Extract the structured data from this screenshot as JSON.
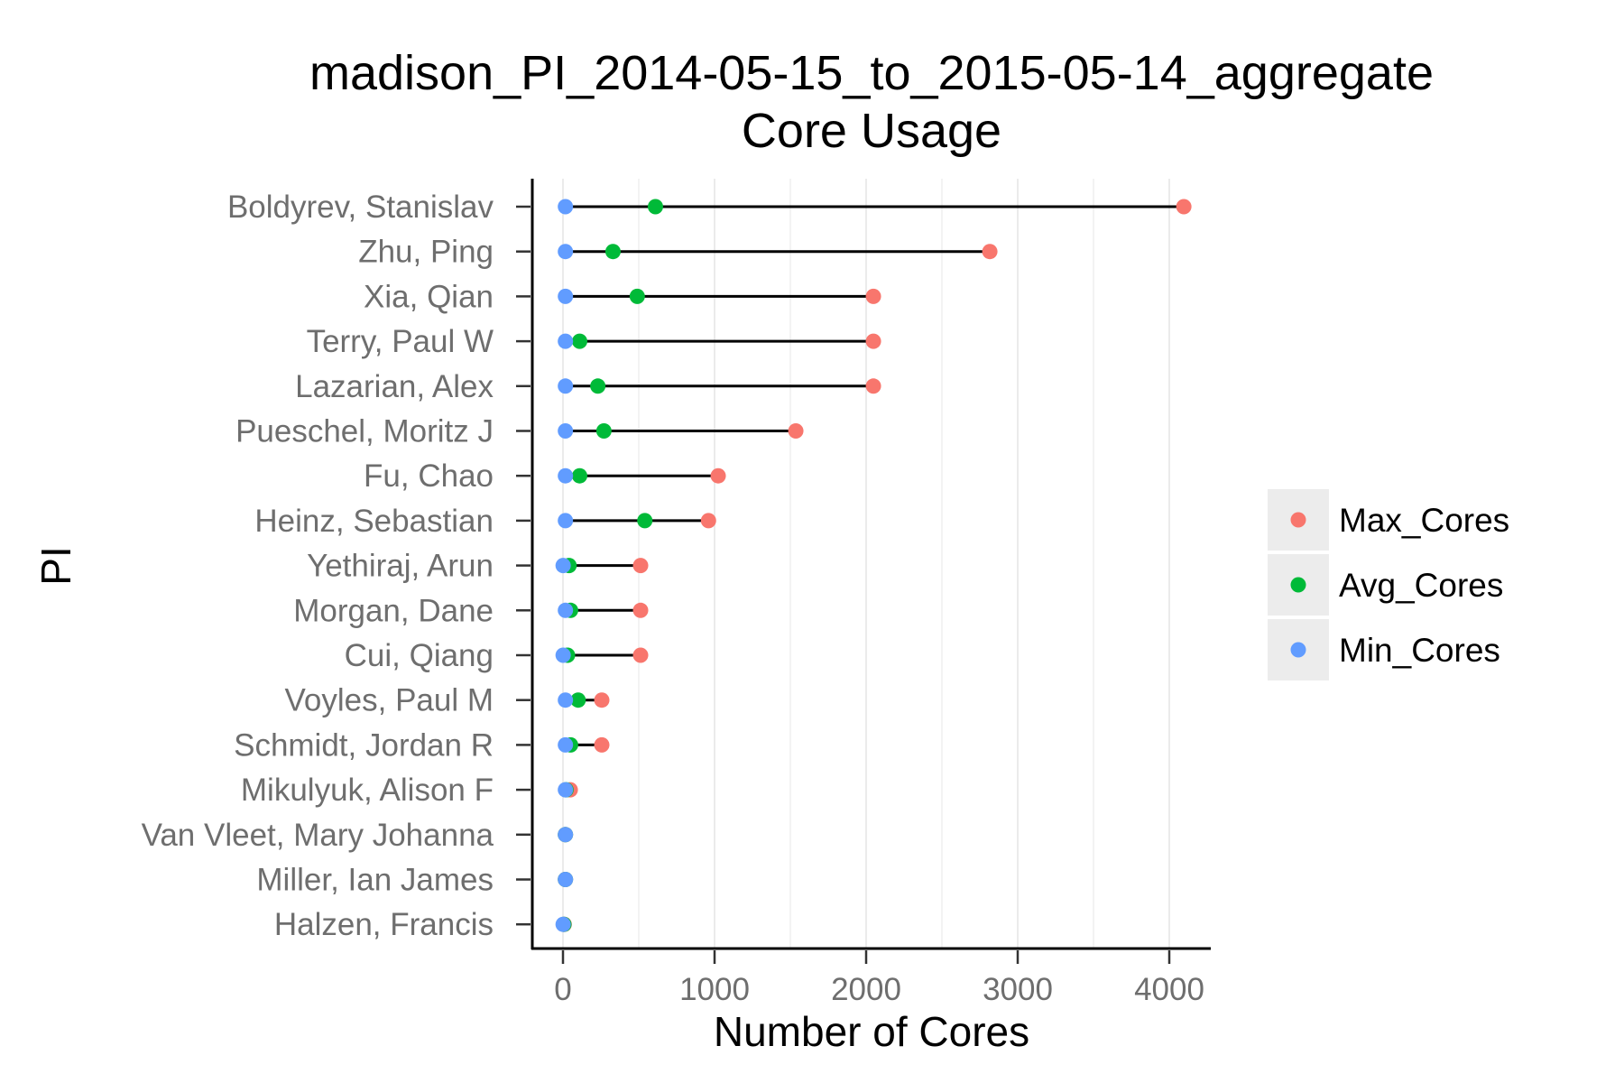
{
  "chart_data": {
    "type": "scatter",
    "title": "madison_PI_2014-05-15_to_2015-05-14_aggregate",
    "subtitle": "Core Usage",
    "xlabel": "Number of Cores",
    "ylabel": "PI",
    "xlim": [
      -200,
      4300
    ],
    "xticks": [
      0,
      1000,
      2000,
      3000,
      4000
    ],
    "grid": true,
    "legend_position": "right",
    "categories": [
      "Boldyrev, Stanislav",
      "Zhu, Ping",
      "Xia, Qian",
      "Terry, Paul W",
      "Lazarian, Alex",
      "Pueschel, Moritz J",
      "Fu, Chao",
      "Heinz, Sebastian",
      "Yethiraj, Arun",
      "Morgan, Dane",
      "Cui, Qiang",
      "Voyles, Paul M",
      "Schmidt, Jordan R",
      "Mikulyuk, Alison F",
      "Van Vleet, Mary Johanna",
      "Miller, Ian James",
      "Halzen, Francis"
    ],
    "series": [
      {
        "name": "Max_Cores",
        "color": "#F8766D",
        "values": [
          4096,
          2816,
          2048,
          2048,
          2048,
          1536,
          1024,
          960,
          512,
          512,
          512,
          256,
          256,
          48,
          16,
          16,
          8
        ]
      },
      {
        "name": "Avg_Cores",
        "color": "#00BA38",
        "values": [
          610,
          330,
          490,
          110,
          230,
          270,
          110,
          540,
          40,
          50,
          30,
          100,
          50,
          20,
          16,
          16,
          6
        ]
      },
      {
        "name": "Min_Cores",
        "color": "#619CFF",
        "values": [
          16,
          16,
          16,
          16,
          16,
          16,
          16,
          16,
          1,
          16,
          1,
          16,
          16,
          16,
          16,
          16,
          1
        ]
      }
    ]
  }
}
